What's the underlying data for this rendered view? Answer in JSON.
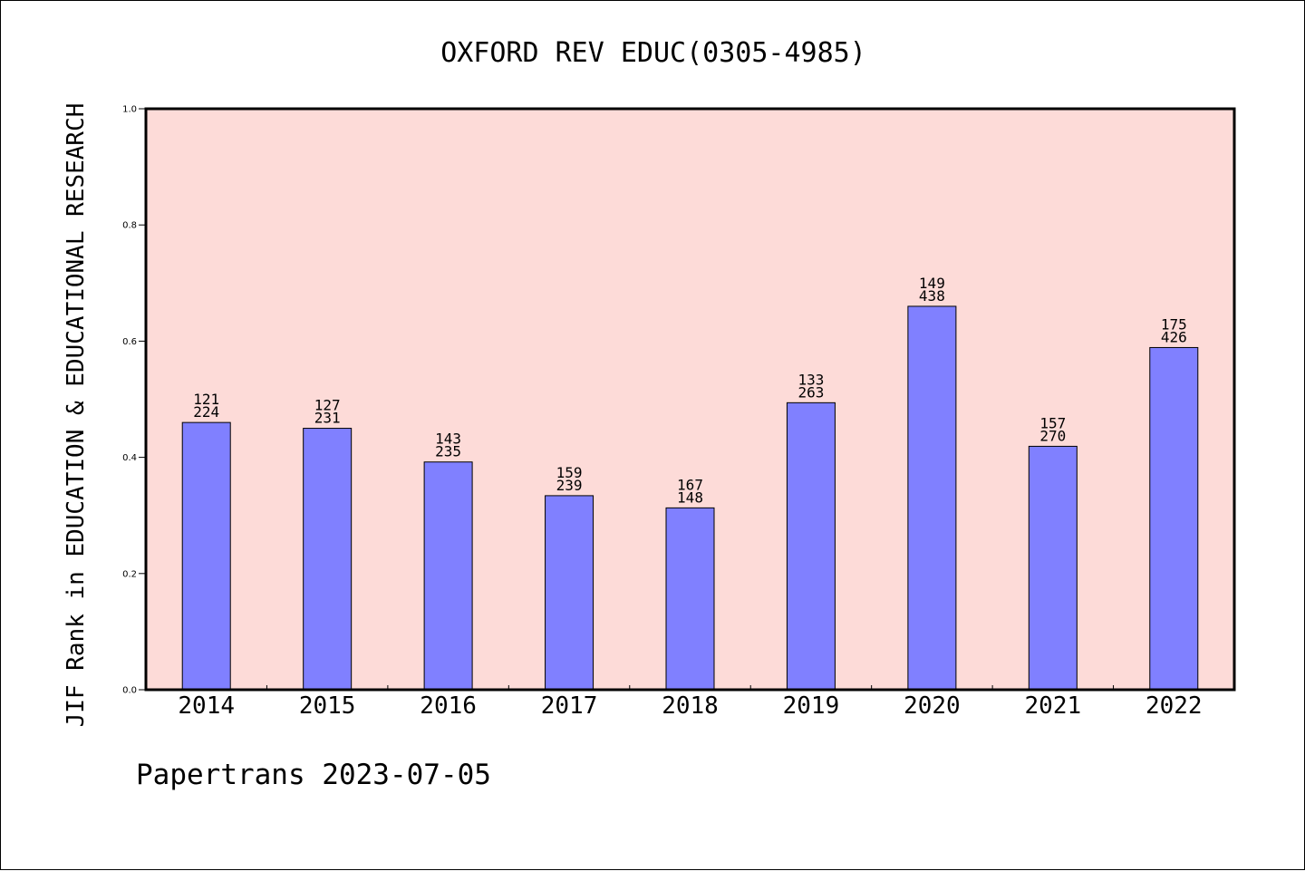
{
  "chart_data": {
    "type": "bar",
    "title": "OXFORD REV EDUC(0305-4985)",
    "ylabel": "JIF Rank in EDUCATION & EDUCATIONAL RESEARCH",
    "xlabel": "",
    "categories": [
      "2014",
      "2015",
      "2016",
      "2017",
      "2018",
      "2019",
      "2020",
      "2021",
      "2022"
    ],
    "values": [
      0.46,
      0.45,
      0.392,
      0.334,
      0.313,
      0.494,
      0.66,
      0.419,
      0.589
    ],
    "bar_labels_top": [
      "121",
      "127",
      "143",
      "159",
      "167",
      "133",
      "149",
      "157",
      "175"
    ],
    "bar_labels_bottom": [
      "224",
      "231",
      "235",
      "239",
      "148",
      "263",
      "438",
      "270",
      "426"
    ],
    "ylim": [
      0,
      1.0
    ],
    "yticks": [
      "0.0",
      "0.2",
      "0.4",
      "0.6",
      "0.8",
      "1.0"
    ],
    "grid": false,
    "colors": {
      "plot_background": "#fddbd8",
      "bar_fill": "#8080ff",
      "bar_stroke": "#000000"
    }
  },
  "footer": "Papertrans 2023-07-05"
}
